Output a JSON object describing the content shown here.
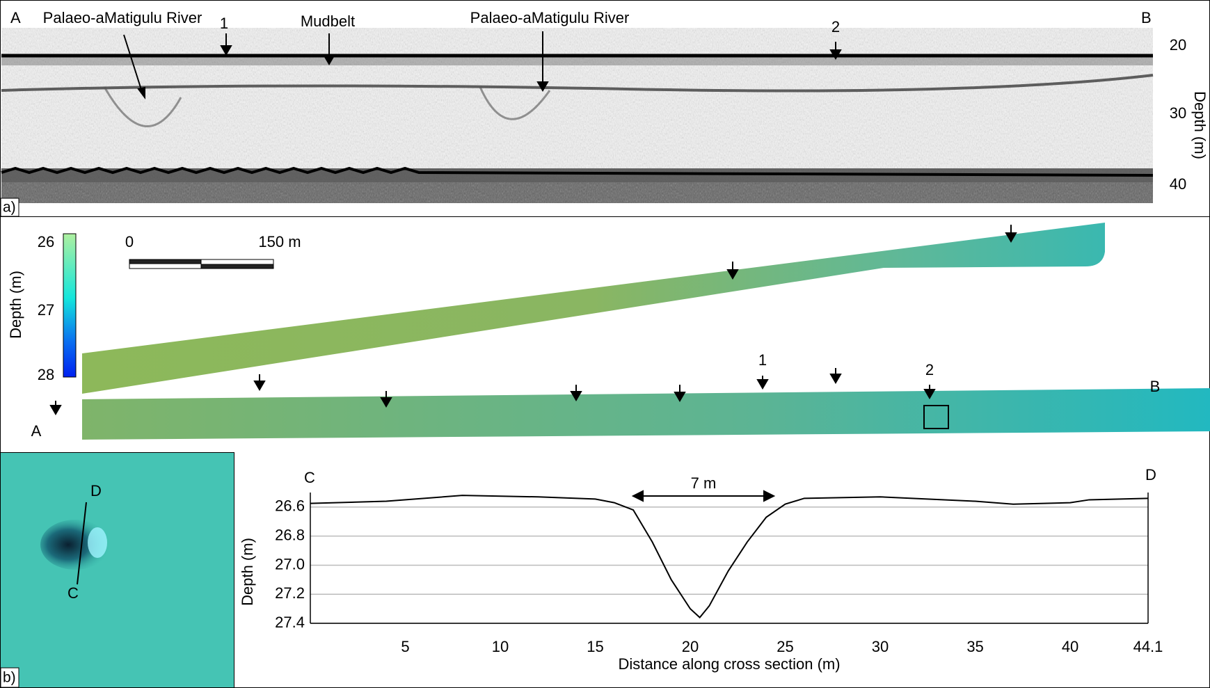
{
  "panel_a": {
    "point_a": "A",
    "point_b": "B",
    "river_1": "Palaeo-aMatigulu River",
    "marker_1": "1",
    "mudbelt": "Mudbelt",
    "river_2": "Palaeo-aMatigulu River",
    "marker_2": "2",
    "depth_ticks": [
      "20",
      "30",
      "40"
    ],
    "axis_label": "Depth (m)",
    "panel_label": "a)"
  },
  "panel_b": {
    "colorbar_ticks": [
      "26",
      "27",
      "28"
    ],
    "colorbar_label": "Depth (m)",
    "scale_start": "0",
    "scale_end": "150 m",
    "point_a": "A",
    "point_b": "B",
    "marker_1": "1",
    "marker_2": "2",
    "inset_d": "D",
    "inset_c": "C",
    "panel_label": "b)"
  },
  "chart_data": {
    "type": "line",
    "x_label": "Distance along cross section (m)",
    "y_label": "Depth (m)",
    "start_label": "C",
    "end_label": "D",
    "width_annotation": "7 m",
    "color": "#000000",
    "y_inverted": true,
    "grid": true,
    "x": [
      0,
      4,
      8,
      12,
      15,
      16,
      17,
      18,
      19,
      20,
      20.5,
      21,
      22,
      23,
      24,
      25,
      26,
      30,
      35,
      37,
      40,
      41,
      44.1
    ],
    "values": [
      26.575,
      26.56,
      26.52,
      26.53,
      26.545,
      26.57,
      26.62,
      26.84,
      27.1,
      27.3,
      27.36,
      27.28,
      27.04,
      26.84,
      26.67,
      26.58,
      26.54,
      26.53,
      26.56,
      26.58,
      26.57,
      26.55,
      26.54
    ],
    "xlim": [
      0,
      44.1
    ],
    "xticks": [
      5,
      10,
      15,
      20,
      25,
      30,
      35,
      40,
      44.1
    ],
    "ylim": [
      26.5,
      27.4
    ],
    "yticks": [
      26.6,
      26.8,
      {
        "value": 27,
        "label": "27.0"
      },
      27.2,
      27.4
    ]
  }
}
